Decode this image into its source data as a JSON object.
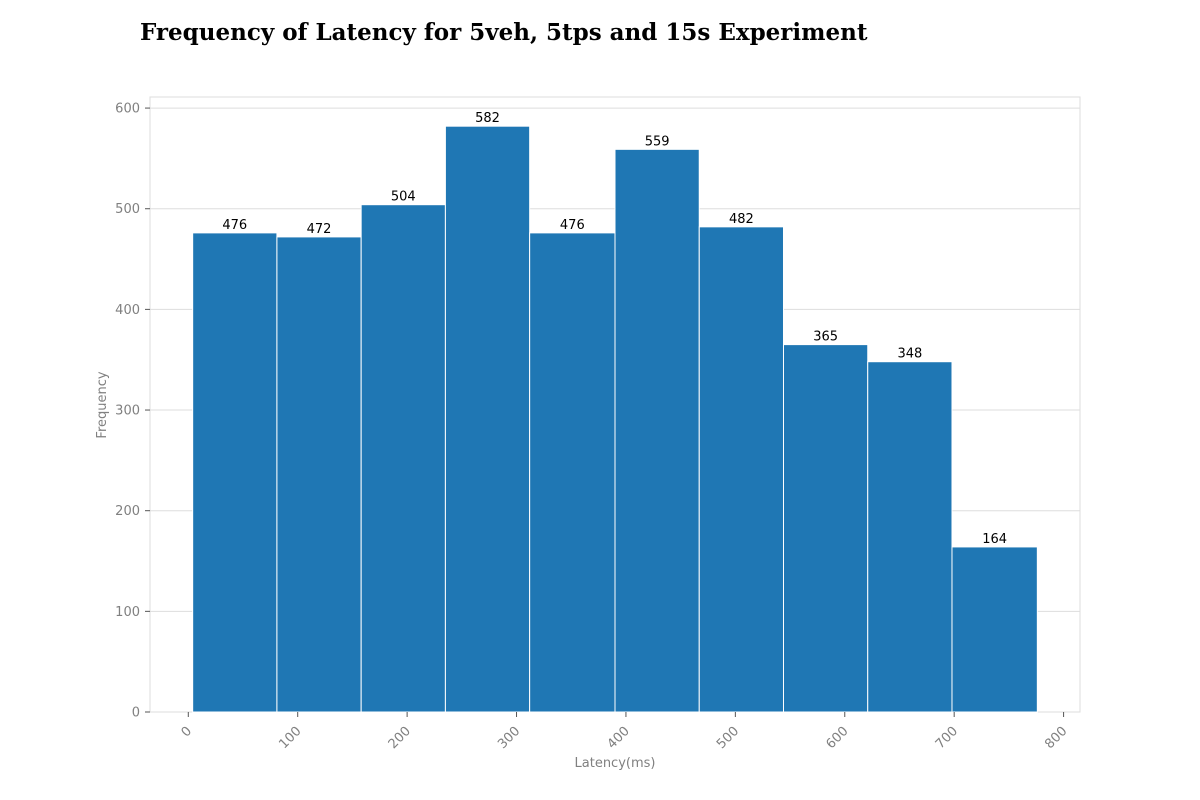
{
  "chart_data": {
    "type": "bar",
    "title": "Frequency of Latency for 5veh, 5tps and 15s Experiment",
    "xlabel": "Latency(ms)",
    "ylabel": "Frequency",
    "bins": [
      {
        "x0": 4,
        "x1": 81,
        "value": 476
      },
      {
        "x0": 81,
        "x1": 158,
        "value": 472
      },
      {
        "x0": 158,
        "x1": 235,
        "value": 504
      },
      {
        "x0": 235,
        "x1": 312,
        "value": 582
      },
      {
        "x0": 312,
        "x1": 390,
        "value": 476
      },
      {
        "x0": 390,
        "x1": 467,
        "value": 559
      },
      {
        "x0": 467,
        "x1": 544,
        "value": 482
      },
      {
        "x0": 544,
        "x1": 621,
        "value": 365
      },
      {
        "x0": 621,
        "x1": 698,
        "value": 348
      },
      {
        "x0": 698,
        "x1": 776,
        "value": 164
      }
    ],
    "value_labels": [
      "476",
      "472",
      "504",
      "582",
      "476",
      "559",
      "482",
      "365",
      "348",
      "164"
    ],
    "xticks": [
      "0",
      "100",
      "200",
      "300",
      "400",
      "500",
      "600",
      "700",
      "800"
    ],
    "yticks": [
      "0",
      "100",
      "200",
      "300",
      "400",
      "500",
      "600"
    ],
    "xlim": [
      -35,
      815
    ],
    "ylim": [
      0,
      611
    ],
    "grid": "horizontal",
    "legend": "none",
    "colors": {
      "bar": "#1f77b4",
      "bar_edge": "#ffffff",
      "grid": "#dddddd",
      "frame": "#dddddd",
      "tick_text": "#808080"
    }
  }
}
